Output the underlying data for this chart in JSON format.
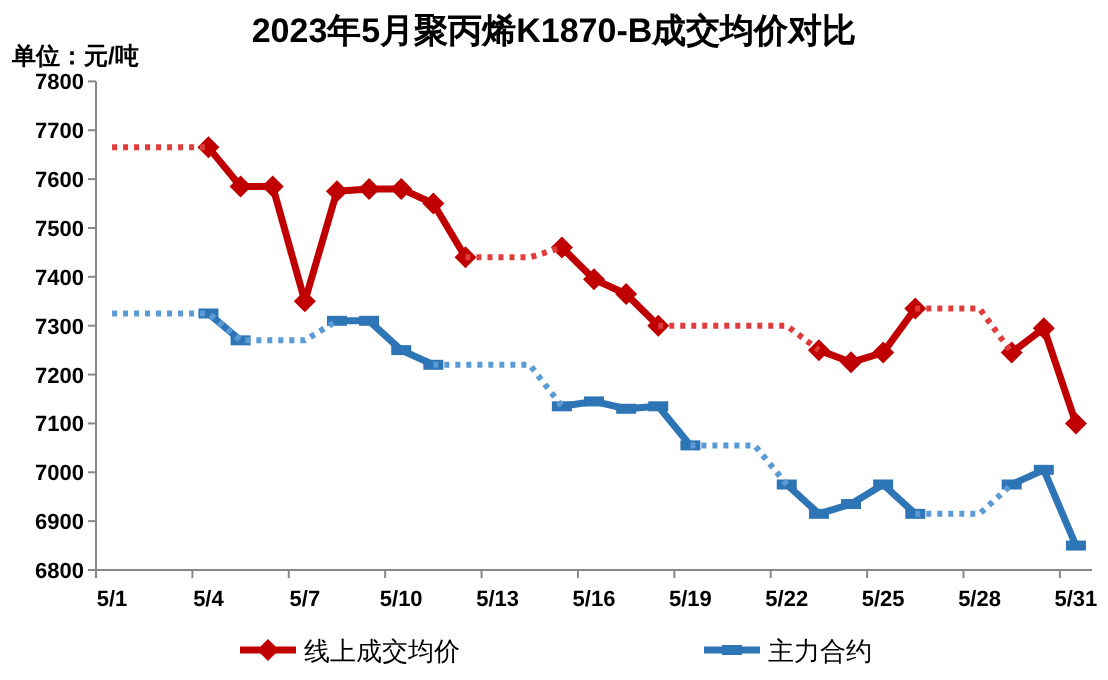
{
  "chart_data": {
    "type": "line",
    "title": "2023年5月聚丙烯K1870-B成交均价对比",
    "ylabel": "单位：元/吨",
    "categories": [
      "5/1",
      null,
      null,
      "5/4",
      null,
      null,
      "5/7",
      null,
      null,
      "5/10",
      null,
      null,
      "5/13",
      null,
      null,
      "5/16",
      null,
      null,
      "5/19",
      null,
      null,
      "5/22",
      null,
      null,
      "5/25",
      null,
      null,
      "5/28",
      null,
      null,
      "5/31"
    ],
    "ylim": [
      6800,
      7800
    ],
    "yticks": [
      6800,
      6900,
      7000,
      7100,
      7200,
      7300,
      7400,
      7500,
      7600,
      7700,
      7800
    ],
    "grid": false,
    "legend": "bottom",
    "series": [
      {
        "name": "线上成交均价",
        "color": "#c00000",
        "marker": "diamond",
        "line_style": "solid",
        "values": [
          null,
          null,
          null,
          7665,
          7585,
          7585,
          7350,
          7575,
          7580,
          7580,
          7550,
          7440,
          null,
          null,
          7460,
          7395,
          7365,
          7300,
          null,
          null,
          null,
          null,
          7250,
          7225,
          7245,
          7335,
          null,
          null,
          7245,
          7295,
          7100
        ]
      },
      {
        "color": "#e03c3c",
        "marker": "none",
        "line_style": "dotted",
        "values": [
          7665,
          7665,
          7665,
          7665,
          null,
          null,
          null,
          null,
          null,
          null,
          null,
          7440,
          7440,
          7440,
          7460,
          null,
          null,
          7300,
          7300,
          7300,
          7300,
          7300,
          7250,
          null,
          null,
          7335,
          7335,
          7335,
          7245,
          null,
          null
        ]
      },
      {
        "name": "主力合约",
        "color": "#2e75b6",
        "marker": "square",
        "line_style": "solid",
        "values": [
          null,
          null,
          null,
          7325,
          7270,
          null,
          null,
          7310,
          7310,
          7250,
          7220,
          null,
          null,
          null,
          7135,
          7145,
          7130,
          7135,
          7055,
          null,
          null,
          6975,
          6915,
          6935,
          6975,
          6915,
          null,
          null,
          6975,
          7005,
          6850
        ]
      },
      {
        "color": "#5b9bd5",
        "marker": "none",
        "line_style": "dotted",
        "values": [
          7325,
          7325,
          7325,
          7325,
          7270,
          7270,
          7270,
          7310,
          null,
          null,
          7220,
          7220,
          7220,
          7220,
          7135,
          null,
          null,
          null,
          7055,
          7055,
          7055,
          6975,
          null,
          null,
          null,
          6915,
          6915,
          6915,
          6975,
          null,
          null
        ]
      }
    ]
  }
}
